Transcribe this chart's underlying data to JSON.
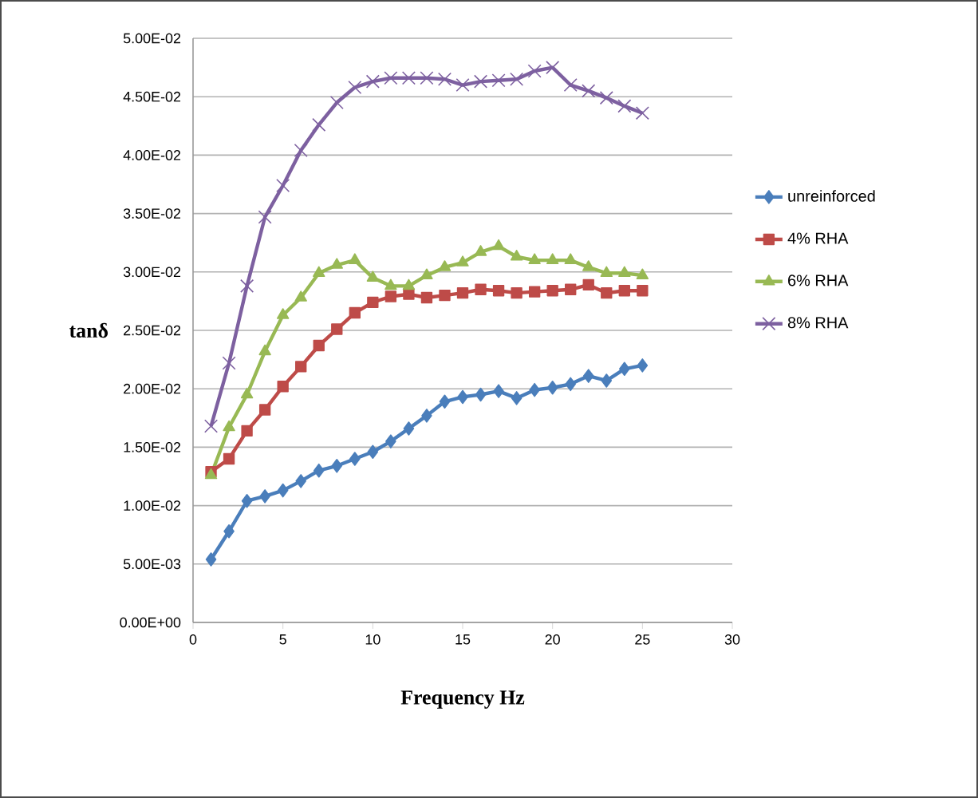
{
  "chart_data": {
    "type": "line",
    "xlabel": "Frequency Hz",
    "ylabel": "tanδ",
    "x": [
      1,
      2,
      3,
      4,
      5,
      6,
      7,
      8,
      9,
      10,
      11,
      12,
      13,
      14,
      15,
      16,
      17,
      18,
      19,
      20,
      21,
      22,
      23,
      24,
      25
    ],
    "series": [
      {
        "name": "unreinforced",
        "color": "#4a7ebb",
        "marker": "diamond",
        "values": [
          0.0054,
          0.0078,
          0.0104,
          0.0108,
          0.0113,
          0.0121,
          0.013,
          0.0134,
          0.014,
          0.0146,
          0.0155,
          0.0166,
          0.0177,
          0.0189,
          0.0193,
          0.0195,
          0.0198,
          0.0192,
          0.0199,
          0.0201,
          0.0204,
          0.0211,
          0.0207,
          0.0217,
          0.022
        ]
      },
      {
        "name": "4% RHA",
        "color": "#be4b48",
        "marker": "square",
        "values": [
          0.0129,
          0.014,
          0.0164,
          0.0182,
          0.0202,
          0.0219,
          0.0237,
          0.0251,
          0.0265,
          0.0274,
          0.0279,
          0.0281,
          0.0278,
          0.028,
          0.0282,
          0.0285,
          0.0284,
          0.0282,
          0.0283,
          0.0284,
          0.0285,
          0.0289,
          0.0282,
          0.0284,
          0.0284
        ]
      },
      {
        "name": "6% RHA",
        "color": "#98b954",
        "marker": "triangle",
        "values": [
          0.0126,
          0.0167,
          0.0195,
          0.0232,
          0.0263,
          0.0278,
          0.0299,
          0.0306,
          0.031,
          0.0295,
          0.0288,
          0.0288,
          0.0297,
          0.0304,
          0.0308,
          0.0317,
          0.0322,
          0.0313,
          0.031,
          0.031,
          0.031,
          0.0304,
          0.0299,
          0.0299,
          0.0297
        ]
      },
      {
        "name": "8% RHA",
        "color": "#7d60a0",
        "marker": "cross",
        "values": [
          0.0168,
          0.0222,
          0.0288,
          0.0347,
          0.0374,
          0.0404,
          0.0426,
          0.0445,
          0.0458,
          0.0463,
          0.0466,
          0.0466,
          0.0466,
          0.0465,
          0.046,
          0.0463,
          0.0464,
          0.0465,
          0.0472,
          0.0475,
          0.046,
          0.0455,
          0.0449,
          0.0442,
          0.0436
        ]
      }
    ],
    "xlim": [
      0,
      30
    ],
    "xticks": [
      0,
      5,
      10,
      15,
      20,
      25,
      30
    ],
    "ylim": [
      0,
      0.05
    ],
    "yticks": [
      {
        "value": 0,
        "label": "0.00E+00"
      },
      {
        "value": 0.005,
        "label": "5.00E-03"
      },
      {
        "value": 0.01,
        "label": "1.00E-02"
      },
      {
        "value": 0.015,
        "label": "1.50E-02"
      },
      {
        "value": 0.02,
        "label": "2.00E-02"
      },
      {
        "value": 0.025,
        "label": "2.50E-02"
      },
      {
        "value": 0.03,
        "label": "3.00E-02"
      },
      {
        "value": 0.035,
        "label": "3.50E-02"
      },
      {
        "value": 0.04,
        "label": "4.00E-02"
      },
      {
        "value": 0.045,
        "label": "4.50E-02"
      },
      {
        "value": 0.05,
        "label": "5.00E-02"
      }
    ],
    "grid": "y",
    "legend": "right",
    "line_style": "solid"
  }
}
